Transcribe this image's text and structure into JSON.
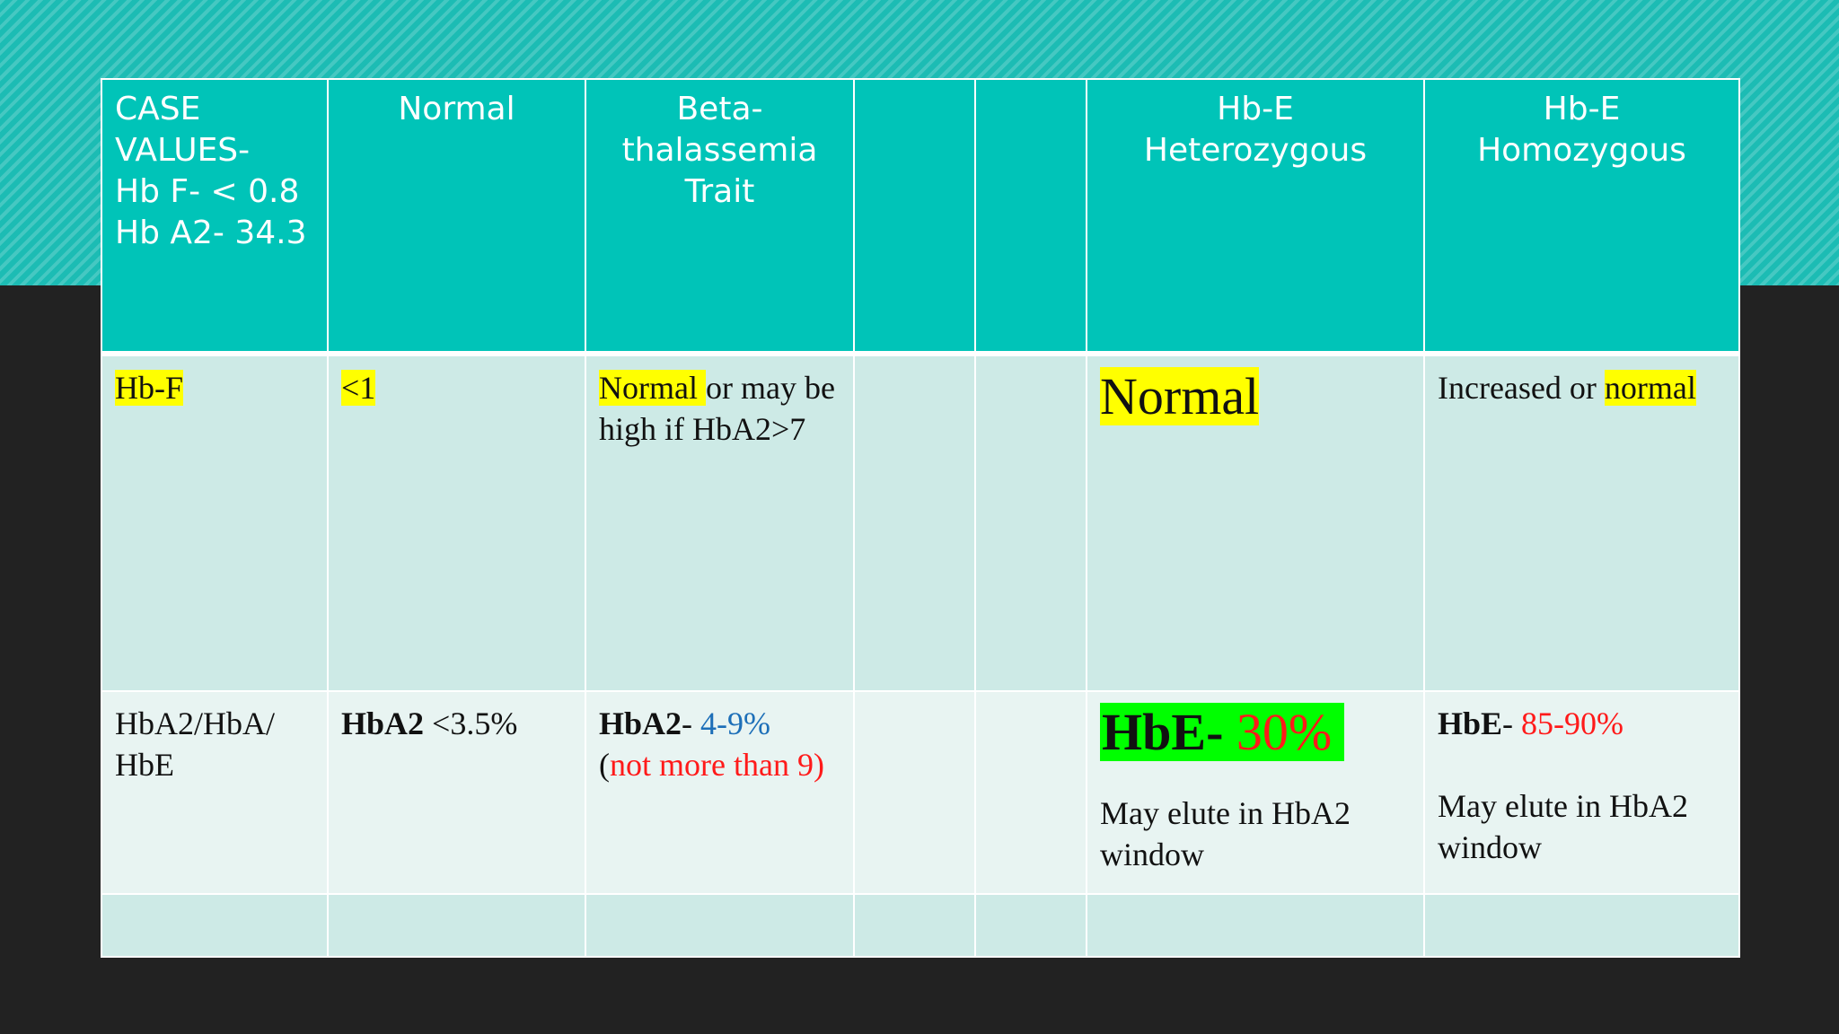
{
  "header": {
    "case": [
      "CASE",
      "VALUES-",
      "Hb F- < 0.8",
      "Hb A2- 34.3"
    ],
    "normal": "Normal",
    "beta": [
      "Beta-",
      "thalassemia",
      "Trait"
    ],
    "col4": "",
    "col5": "",
    "hbe_het": [
      "Hb-E",
      "Heterozygous"
    ],
    "hbe_hom": [
      "Hb-E",
      "Homozygous"
    ]
  },
  "row_hbf": {
    "label": "Hb-F",
    "normal": "<1",
    "beta": {
      "hl": "Normal ",
      "rest": "or may be high if HbA2>7"
    },
    "hbe_het": "Normal",
    "hbe_hom": {
      "pre": "Increased or ",
      "hl": "normal"
    }
  },
  "row_hba2": {
    "label": "HbA2/HbA/ HbE",
    "normal": {
      "bold": "HbA2",
      "rest": " <3.5%"
    },
    "beta": {
      "bold": "HbA2",
      "dash": "- ",
      "range": "4-9%",
      "paren_open": "(",
      "note": "not more than 9",
      "paren_close": ")"
    },
    "hbe_het": {
      "bold": "HbE",
      "dash": "- ",
      "value": "30%",
      "note": "May elute in HbA2 window"
    },
    "hbe_hom": {
      "bold": "HbE",
      "dash": "- ",
      "value": "85-90%",
      "note": "May elute in HbA2 window"
    }
  },
  "colors": {
    "teal_header": "#00c4b8",
    "band": "#1cbcb4",
    "highlight_yellow": "#ffff00",
    "highlight_green": "#00ff00",
    "red": "#ff1a1a",
    "blue": "#1d6fb8"
  }
}
